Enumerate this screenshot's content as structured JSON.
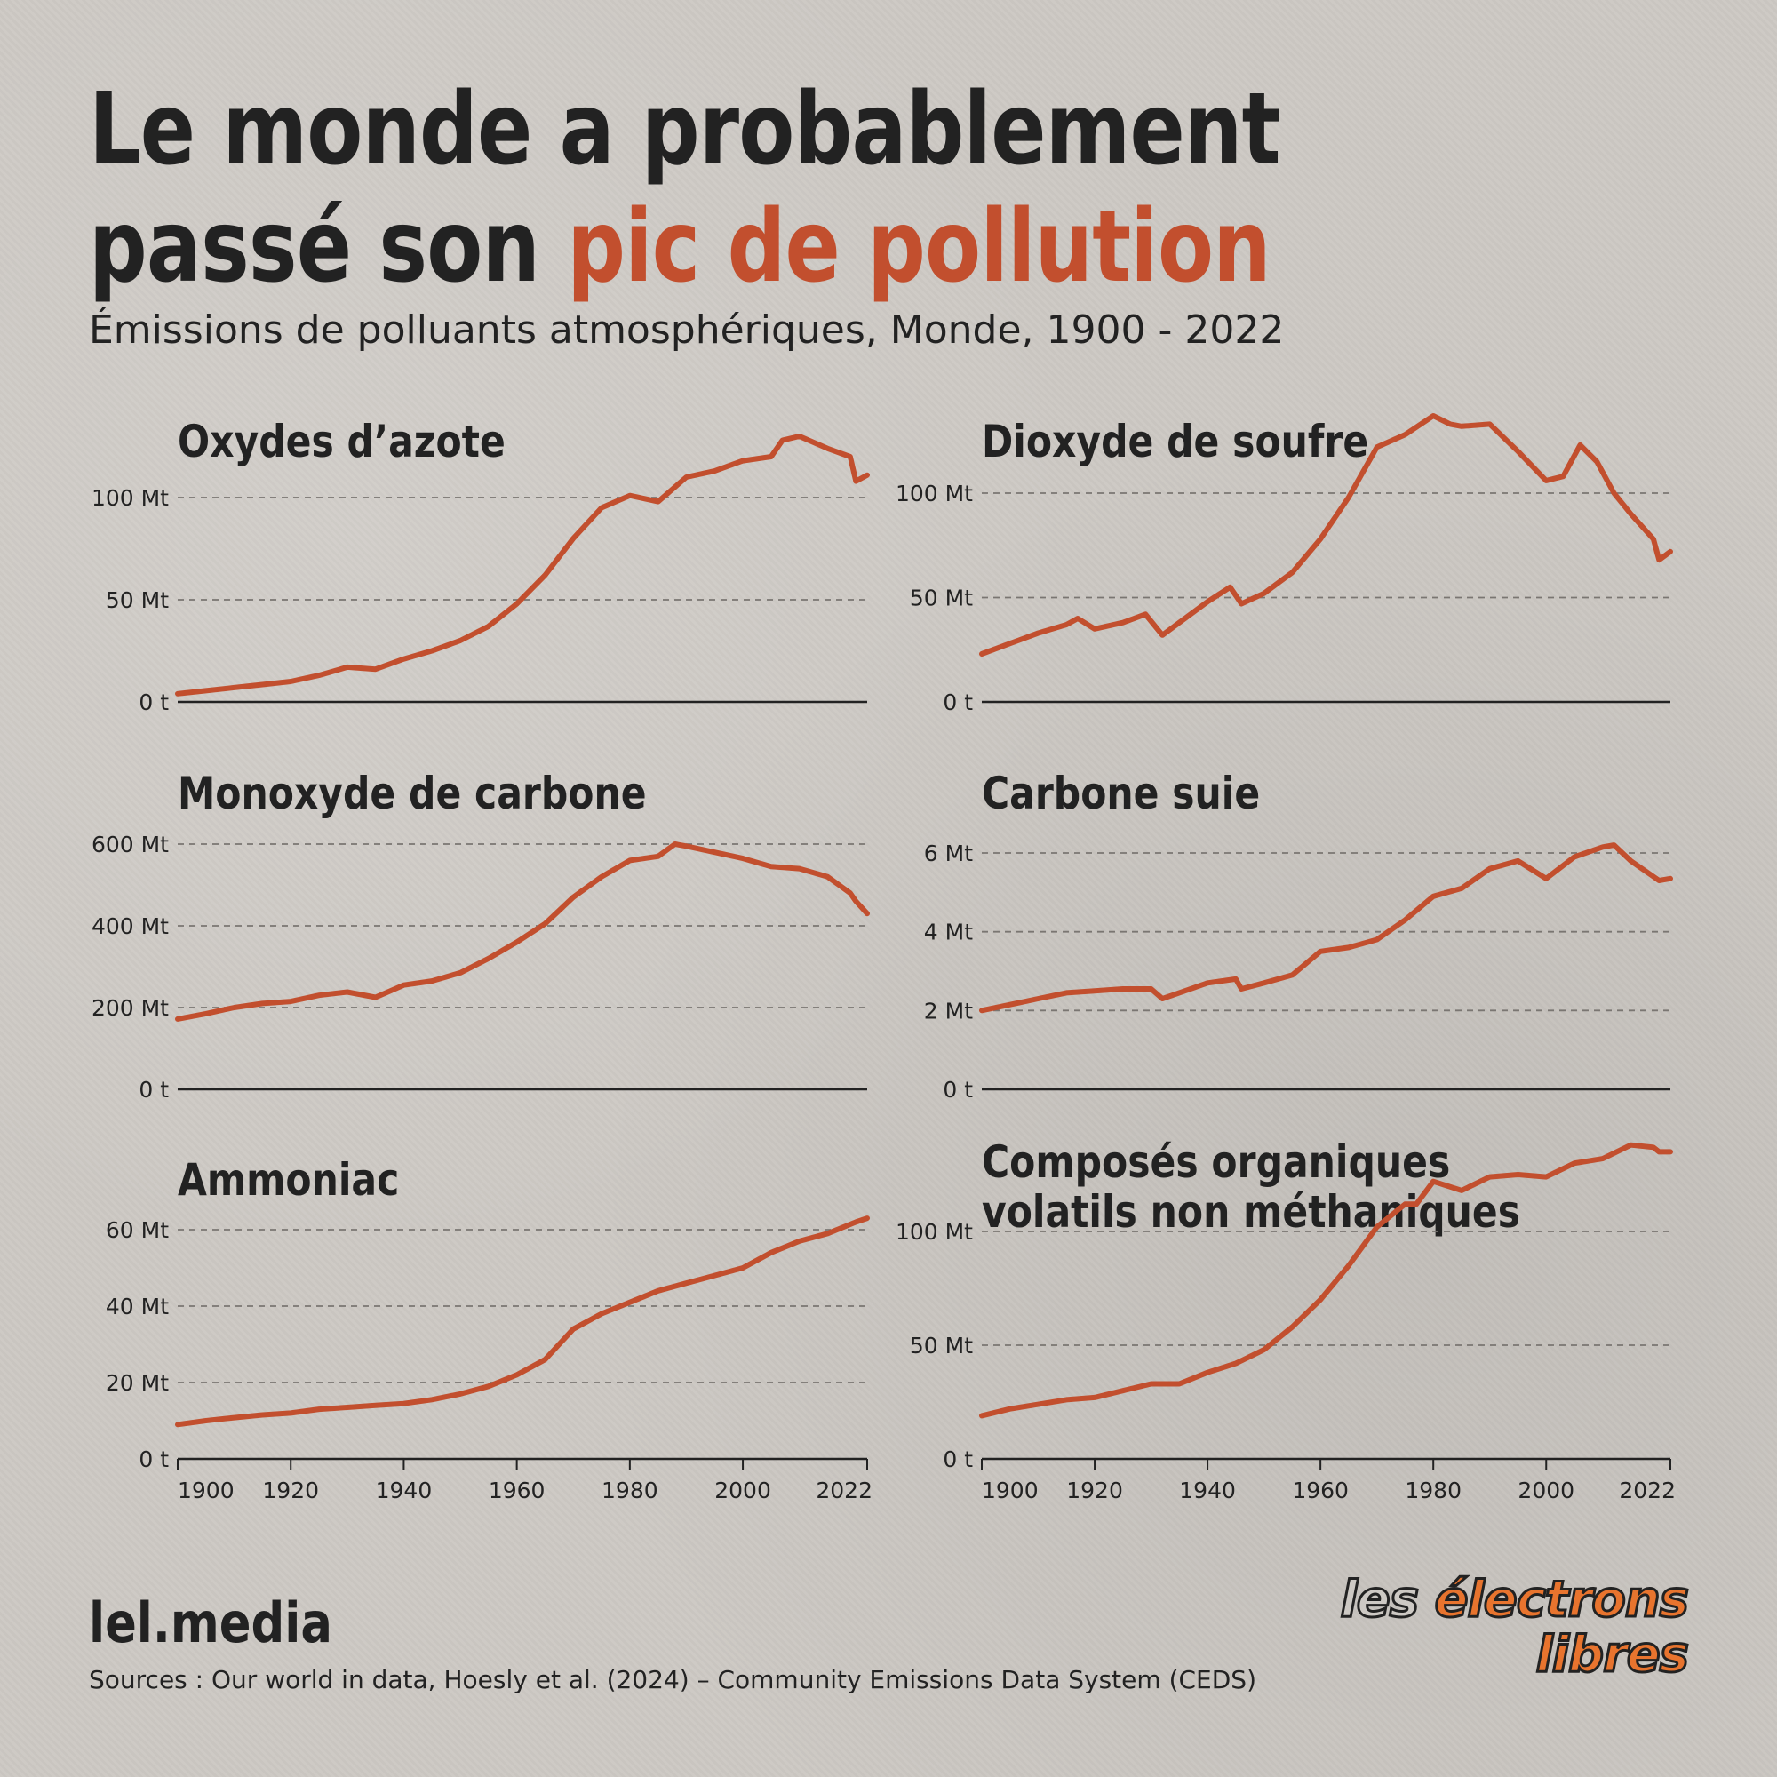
{
  "header": {
    "title_line1": "Le monde a probablement",
    "title_line2_prefix": "passé son ",
    "title_highlight": "pic de pollution",
    "subtitle": "Émissions de polluants atmosphériques, Monde, 1900 - 2022"
  },
  "colors": {
    "line": "#c24f2e",
    "highlight": "#c24f2e",
    "gridline": "#7a7672",
    "axis": "#222222"
  },
  "footer": {
    "brand": "lel.media",
    "sources": "Sources : Our world in data, Hoesly et al. (2024) – Community Emissions Data System (CEDS)",
    "logo_part1": "les",
    "logo_part2": "électrons",
    "logo_part3": "libres"
  },
  "chart_data": [
    {
      "type": "line",
      "title": [
        "Oxydes d’azote"
      ],
      "x": [
        1900,
        1905,
        1910,
        1915,
        1920,
        1925,
        1930,
        1935,
        1940,
        1945,
        1950,
        1955,
        1960,
        1965,
        1970,
        1975,
        1980,
        1985,
        1990,
        1995,
        2000,
        2005,
        2007,
        2010,
        2015,
        2019,
        2020,
        2022
      ],
      "series": [
        {
          "values": [
            4,
            5.5,
            7,
            8.5,
            10,
            13,
            17,
            16,
            21,
            25,
            30,
            37,
            48,
            62,
            80,
            95,
            101,
            98,
            110,
            113,
            118,
            120,
            128,
            130,
            124,
            120,
            108,
            111
          ]
        }
      ],
      "ylim": [
        0,
        130
      ],
      "yticks": [
        0,
        50,
        100
      ],
      "ytick_labels": [
        "0 t",
        "50 Mt",
        "100 Mt"
      ],
      "xticks": [
        1900,
        1920,
        1940,
        1960,
        1980,
        2000,
        2022
      ],
      "xtick_labels": [],
      "grid": true
    },
    {
      "type": "line",
      "title": [
        "Dioxyde de soufre"
      ],
      "x": [
        1900,
        1905,
        1910,
        1915,
        1917,
        1920,
        1925,
        1929,
        1932,
        1935,
        1940,
        1944,
        1946,
        1950,
        1955,
        1960,
        1965,
        1970,
        1975,
        1980,
        1983,
        1985,
        1990,
        1995,
        2000,
        2003,
        2006,
        2009,
        2012,
        2015,
        2019,
        2020,
        2022
      ],
      "series": [
        {
          "values": [
            23,
            28,
            33,
            37,
            40,
            35,
            38,
            42,
            32,
            38,
            48,
            55,
            47,
            52,
            62,
            78,
            98,
            122,
            128,
            137,
            133,
            132,
            133,
            120,
            106,
            108,
            123,
            115,
            100,
            90,
            78,
            68,
            72
          ]
        }
      ],
      "ylim": [
        0,
        140
      ],
      "yticks": [
        0,
        50,
        100
      ],
      "ytick_labels": [
        "0 t",
        "50 Mt",
        "100 Mt"
      ],
      "xticks": [
        1900,
        1920,
        1940,
        1960,
        1980,
        2000,
        2022
      ],
      "xtick_labels": [],
      "grid": true
    },
    {
      "type": "line",
      "title": [
        "Monoxyde de carbone"
      ],
      "x": [
        1900,
        1905,
        1910,
        1915,
        1920,
        1925,
        1930,
        1935,
        1940,
        1945,
        1950,
        1955,
        1960,
        1965,
        1970,
        1975,
        1980,
        1985,
        1988,
        1990,
        1995,
        2000,
        2005,
        2010,
        2015,
        2019,
        2020,
        2022
      ],
      "series": [
        {
          "values": [
            172,
            185,
            200,
            210,
            215,
            230,
            238,
            225,
            255,
            265,
            285,
            320,
            360,
            405,
            470,
            520,
            560,
            570,
            600,
            595,
            580,
            565,
            545,
            540,
            520,
            480,
            460,
            430
          ]
        }
      ],
      "ylim": [
        0,
        600
      ],
      "yticks": [
        0,
        200,
        400,
        600
      ],
      "ytick_labels": [
        "0 t",
        "200 Mt",
        "400 Mt",
        "600 Mt"
      ],
      "xticks": [
        1900,
        1920,
        1940,
        1960,
        1980,
        2000,
        2022
      ],
      "xtick_labels": [],
      "grid": true
    },
    {
      "type": "line",
      "title": [
        "Carbone suie"
      ],
      "x": [
        1900,
        1905,
        1910,
        1915,
        1920,
        1925,
        1930,
        1932,
        1935,
        1940,
        1945,
        1946,
        1950,
        1955,
        1960,
        1965,
        1970,
        1975,
        1980,
        1985,
        1990,
        1995,
        2000,
        2005,
        2010,
        2012,
        2015,
        2019,
        2020,
        2022
      ],
      "series": [
        {
          "values": [
            2.0,
            2.15,
            2.3,
            2.45,
            2.5,
            2.55,
            2.55,
            2.3,
            2.45,
            2.7,
            2.8,
            2.55,
            2.7,
            2.9,
            3.5,
            3.6,
            3.8,
            4.3,
            4.9,
            5.1,
            5.6,
            5.8,
            5.35,
            5.9,
            6.15,
            6.2,
            5.8,
            5.4,
            5.3,
            5.35
          ]
        }
      ],
      "ylim": [
        0,
        6.5
      ],
      "yticks": [
        0,
        2,
        4,
        6
      ],
      "ytick_labels": [
        "0 t",
        "2 Mt",
        "4 Mt",
        "6 Mt"
      ],
      "xticks": [
        1900,
        1920,
        1940,
        1960,
        1980,
        2000,
        2022
      ],
      "xtick_labels": [],
      "grid": true
    },
    {
      "type": "line",
      "title": [
        "Ammoniac"
      ],
      "x": [
        1900,
        1905,
        1910,
        1915,
        1920,
        1925,
        1930,
        1935,
        1940,
        1945,
        1950,
        1955,
        1960,
        1965,
        1970,
        1975,
        1980,
        1985,
        1990,
        1995,
        2000,
        2005,
        2010,
        2015,
        2020,
        2022
      ],
      "series": [
        {
          "values": [
            9,
            10,
            10.8,
            11.5,
            12,
            13,
            13.5,
            14,
            14.5,
            15.5,
            17,
            19,
            22,
            26,
            34,
            38,
            41,
            44,
            46,
            48,
            50,
            54,
            57,
            59,
            62,
            63
          ]
        }
      ],
      "ylim": [
        0,
        65
      ],
      "yticks": [
        0,
        20,
        40,
        60
      ],
      "ytick_labels": [
        "0 t",
        "20 Mt",
        "40 Mt",
        "60 Mt"
      ],
      "xticks": [
        1900,
        1920,
        1940,
        1960,
        1980,
        2000,
        2022
      ],
      "xtick_labels": [
        "1900",
        "1920",
        "1940",
        "1960",
        "1980",
        "2000",
        "2022"
      ],
      "grid": true
    },
    {
      "type": "line",
      "title": [
        "Composés organiques",
        "volatils non méthaniques"
      ],
      "x": [
        1900,
        1905,
        1910,
        1915,
        1920,
        1925,
        1930,
        1935,
        1940,
        1945,
        1950,
        1955,
        1960,
        1965,
        1970,
        1975,
        1977,
        1980,
        1985,
        1990,
        1995,
        2000,
        2005,
        2010,
        2015,
        2019,
        2020,
        2022
      ],
      "series": [
        {
          "values": [
            19,
            22,
            24,
            26,
            27,
            30,
            33,
            33,
            38,
            42,
            48,
            58,
            70,
            85,
            102,
            112,
            112,
            122,
            118,
            124,
            125,
            124,
            130,
            132,
            138,
            137,
            135,
            135
          ]
        }
      ],
      "ylim": [
        0,
        140
      ],
      "yticks": [
        0,
        50,
        100
      ],
      "ytick_labels": [
        "0 t",
        "50 Mt",
        "100 Mt"
      ],
      "xticks": [
        1900,
        1920,
        1940,
        1960,
        1980,
        2000,
        2022
      ],
      "xtick_labels": [
        "1900",
        "1920",
        "1940",
        "1960",
        "1980",
        "2000",
        "2022"
      ],
      "grid": true
    }
  ]
}
